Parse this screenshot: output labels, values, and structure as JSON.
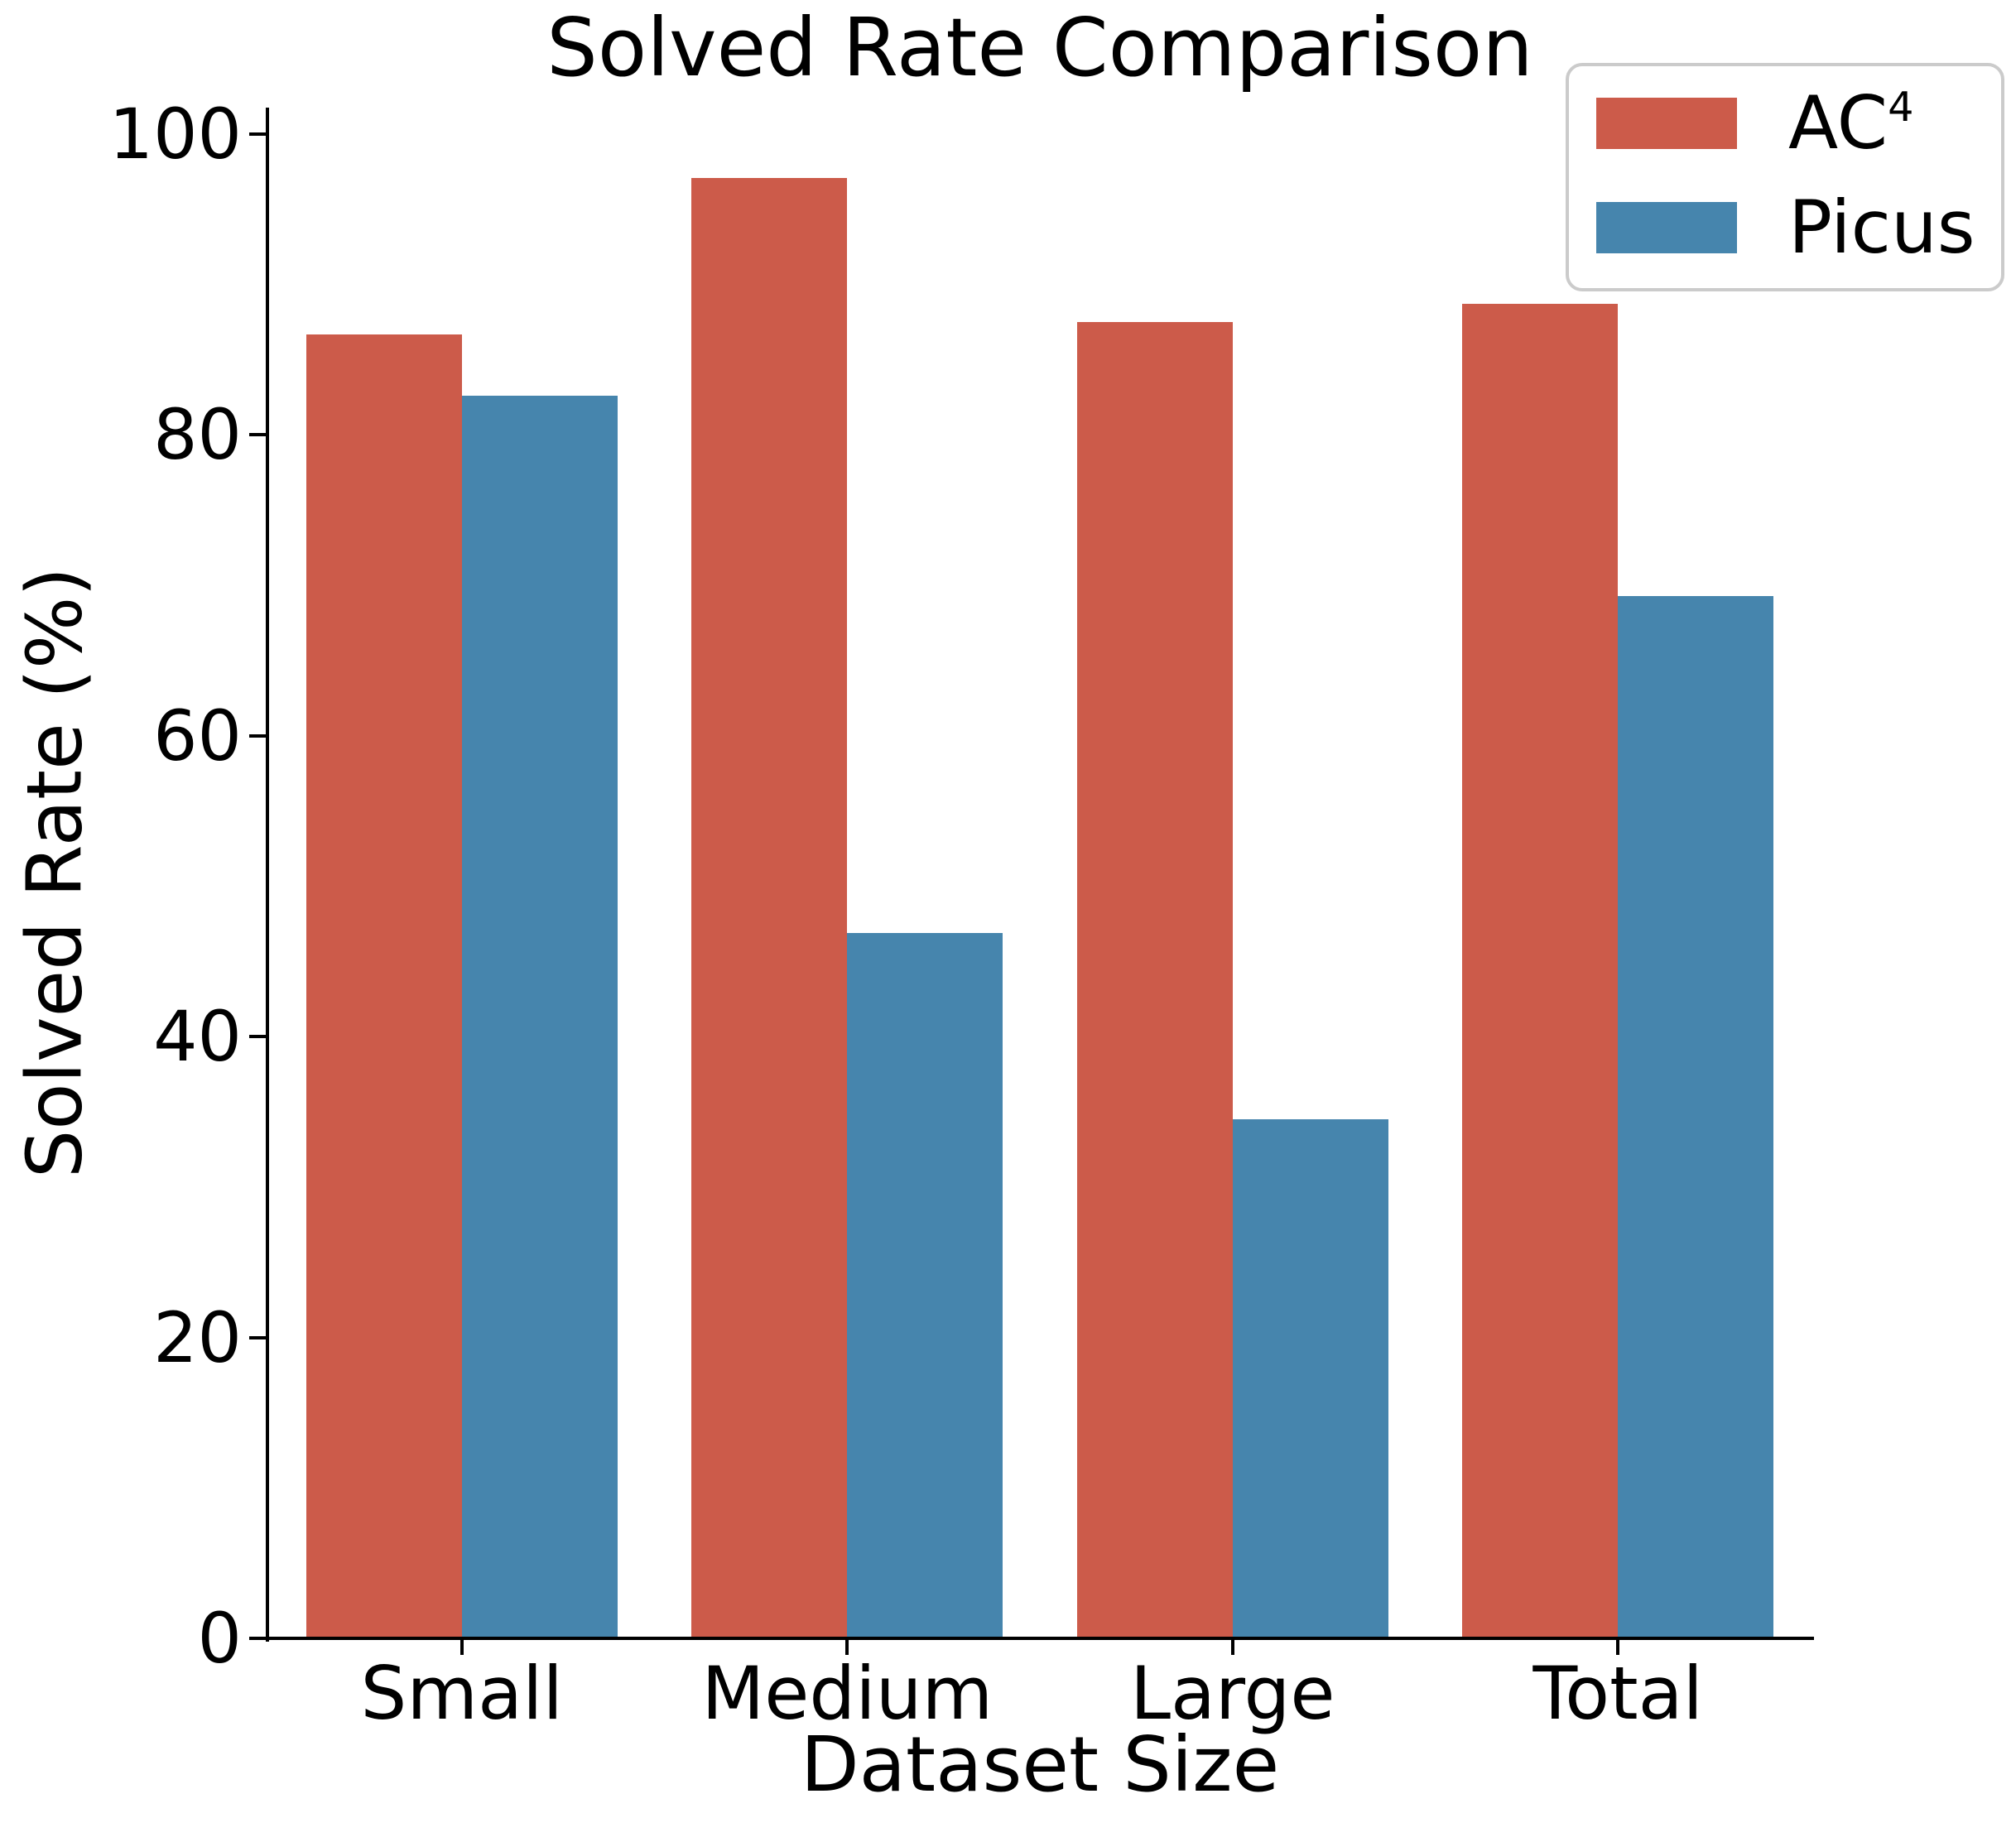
{
  "figure": {
    "title": "Solved Rate Comparison",
    "xlabel": "Dataset Size",
    "ylabel": "Solved Rate (%)"
  },
  "chart_data": {
    "type": "bar",
    "title": "Solved Rate Comparison",
    "xlabel": "Dataset Size",
    "ylabel": "Solved Rate (%)",
    "categories": [
      "Small",
      "Medium",
      "Large",
      "Total"
    ],
    "series": [
      {
        "name": "AC⁴",
        "key": "ac4",
        "color": "#CC5B4A",
        "values": [
          86.7,
          97.1,
          87.5,
          88.7
        ]
      },
      {
        "name": "Picus",
        "key": "picus",
        "color": "#4685AD",
        "values": [
          82.6,
          46.9,
          34.5,
          69.3
        ]
      }
    ],
    "y_ticks": [
      0,
      20,
      40,
      60,
      80,
      100
    ],
    "ylim": [
      0,
      101.8
    ],
    "grid": false,
    "legend_position": "upper right",
    "bar_orientation": "vertical",
    "grouped": true
  },
  "legend": {
    "items": [
      {
        "text": "AC",
        "sup": "4",
        "color": "#CC5B4A",
        "series_key": "ac4"
      },
      {
        "text": "Picus",
        "sup": "",
        "color": "#4685AD",
        "series_key": "picus"
      }
    ]
  },
  "colors": {
    "ac4": "#CC5B4A",
    "picus": "#4685AD",
    "axis": "#000000",
    "legend_border": "#CBCBCB",
    "background": "#FFFFFF"
  }
}
